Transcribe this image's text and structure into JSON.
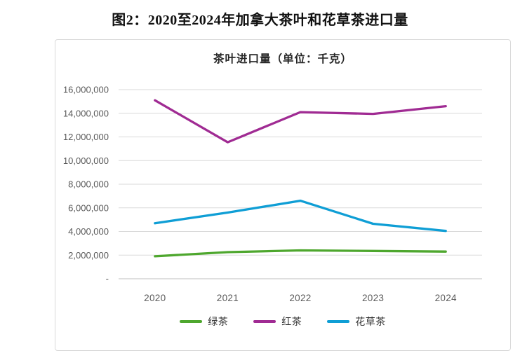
{
  "page": {
    "title": "图2：2020至2024年加拿大茶叶和花草茶进口量"
  },
  "chart_data": {
    "type": "line",
    "title": "茶叶进口量（单位：千克）",
    "categories": [
      "2020",
      "2021",
      "2022",
      "2023",
      "2024"
    ],
    "series": [
      {
        "name": "绿茶",
        "color": "#4ea72e",
        "values": [
          1900000,
          2250000,
          2400000,
          2350000,
          2300000
        ]
      },
      {
        "name": "红茶",
        "color": "#a02b93",
        "values": [
          15100000,
          11550000,
          14100000,
          13950000,
          14600000
        ]
      },
      {
        "name": "花草茶",
        "color": "#0f9ed5",
        "values": [
          4700000,
          5600000,
          6600000,
          4650000,
          4050000
        ]
      }
    ],
    "ylabel": "",
    "xlabel": "",
    "ylim": [
      0,
      16000000
    ],
    "ytick_step": 2000000,
    "ytick_labels": [
      "-",
      "2,000,000",
      "4,000,000",
      "6,000,000",
      "8,000,000",
      "10,000,000",
      "12,000,000",
      "14,000,000",
      "16,000,000"
    ],
    "grid": true,
    "legend_position": "bottom",
    "colors": {
      "gridline": "#d9d9d9",
      "axis_line": "#bfbfbf",
      "tick_label": "#595959",
      "frame_border": "#d9d9d9"
    }
  }
}
